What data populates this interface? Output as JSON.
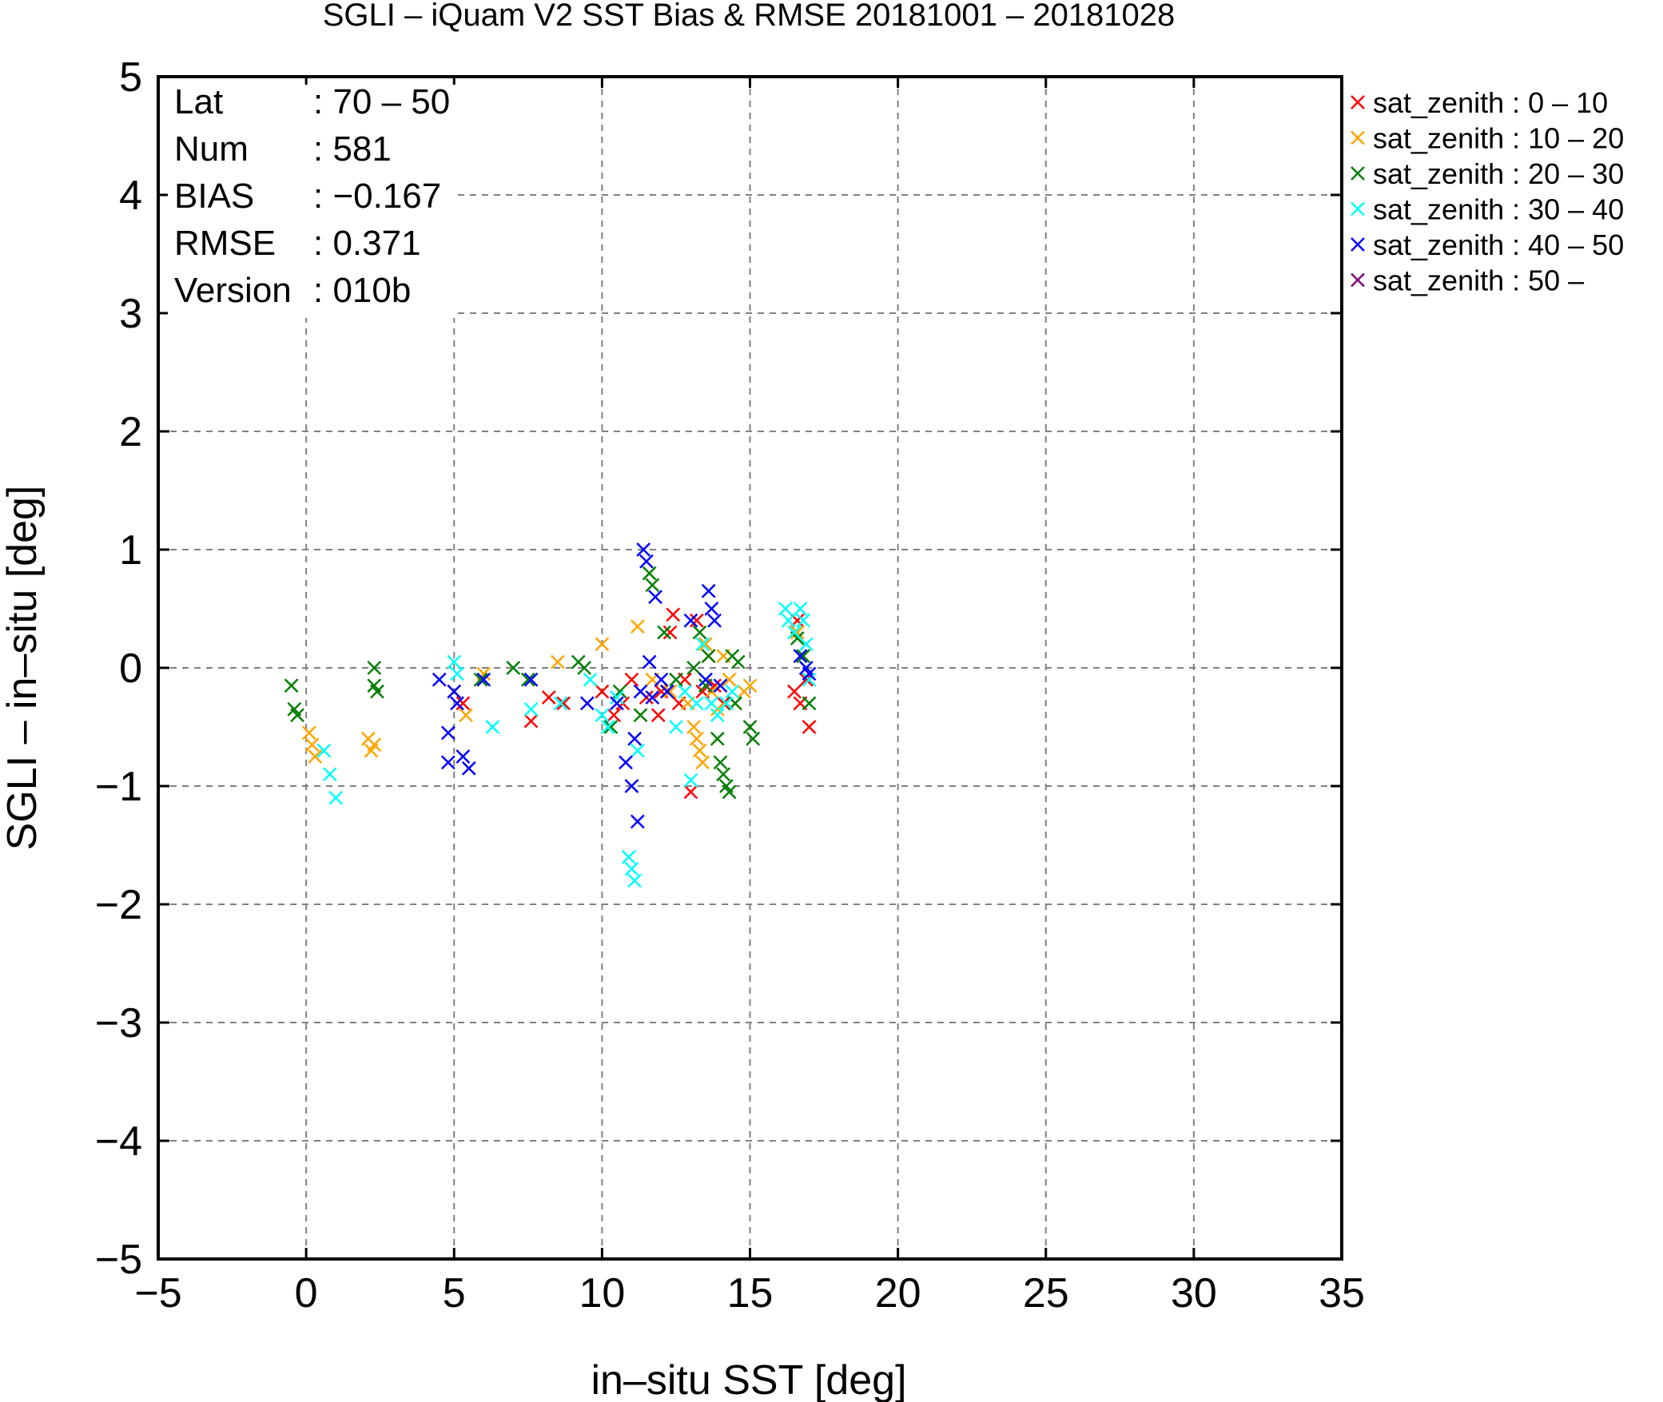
{
  "chart_data": {
    "type": "scatter",
    "title": "SGLI – iQuam V2 SST Bias & RMSE 20181001 – 20181028",
    "xlabel": "in–situ SST [deg]",
    "ylabel": "SGLI – in–situ [deg]",
    "xlim": [
      -5,
      35
    ],
    "ylim": [
      -5,
      5
    ],
    "xticks": [
      -5,
      0,
      5,
      10,
      15,
      20,
      25,
      30,
      35
    ],
    "yticks": [
      -5,
      -4,
      -3,
      -2,
      -1,
      0,
      1,
      2,
      3,
      4,
      5
    ],
    "xtick_labels": [
      "−5",
      "0",
      "5",
      "10",
      "15",
      "20",
      "25",
      "30",
      "35"
    ],
    "ytick_labels": [
      "−5",
      "−4",
      "−3",
      "−2",
      "−1",
      "0",
      "1",
      "2",
      "3",
      "4",
      "5"
    ],
    "grid": true,
    "legend_position": "outside-right-top",
    "stats": [
      {
        "key": "Lat",
        "value": ": 70 – 50"
      },
      {
        "key": "Num",
        "value": ": 581"
      },
      {
        "key": "BIAS",
        "value": ": −0.167"
      },
      {
        "key": "RMSE",
        "value": ": 0.371"
      },
      {
        "key": "Version",
        "value": ": 010b"
      }
    ],
    "series": [
      {
        "name": "sat_zenith :  0 – 10",
        "color": "#ff0000",
        "marker": "x",
        "points": [
          [
            5.3,
            -0.3
          ],
          [
            7.6,
            -0.45
          ],
          [
            8.2,
            -0.25
          ],
          [
            8.7,
            -0.3
          ],
          [
            10.0,
            -0.2
          ],
          [
            10.4,
            -0.4
          ],
          [
            10.7,
            -0.3
          ],
          [
            11.0,
            -0.1
          ],
          [
            11.5,
            -0.25
          ],
          [
            11.9,
            -0.4
          ],
          [
            12.4,
            0.45
          ],
          [
            12.6,
            -0.3
          ],
          [
            12.8,
            -0.1
          ],
          [
            13.0,
            -1.05
          ],
          [
            13.2,
            0.4
          ],
          [
            13.4,
            -0.2
          ],
          [
            13.6,
            0.1
          ],
          [
            13.8,
            -0.15
          ],
          [
            14.1,
            -0.3
          ],
          [
            16.5,
            -0.2
          ],
          [
            16.6,
            0.4
          ],
          [
            16.7,
            -0.3
          ],
          [
            16.9,
            -0.1
          ],
          [
            17.0,
            -0.5
          ],
          [
            12.0,
            -0.2
          ],
          [
            12.3,
            0.3
          ]
        ]
      },
      {
        "name": "sat_zenith : 10 – 20",
        "color": "#ffa500",
        "marker": "x",
        "points": [
          [
            0.1,
            -0.55
          ],
          [
            0.2,
            -0.65
          ],
          [
            0.3,
            -0.75
          ],
          [
            2.1,
            -0.6
          ],
          [
            2.2,
            -0.7
          ],
          [
            2.3,
            -0.65
          ],
          [
            5.0,
            -0.2
          ],
          [
            5.4,
            -0.4
          ],
          [
            6.0,
            -0.05
          ],
          [
            8.5,
            0.05
          ],
          [
            10.0,
            0.2
          ],
          [
            11.2,
            0.35
          ],
          [
            11.7,
            -0.1
          ],
          [
            12.3,
            -0.2
          ],
          [
            12.9,
            -0.3
          ],
          [
            13.1,
            -0.5
          ],
          [
            13.2,
            -0.6
          ],
          [
            13.3,
            -0.7
          ],
          [
            13.4,
            -0.8
          ],
          [
            13.5,
            0.2
          ],
          [
            13.7,
            -0.2
          ],
          [
            13.9,
            -0.35
          ],
          [
            14.1,
            0.1
          ],
          [
            14.3,
            -0.1
          ],
          [
            14.5,
            -0.3
          ],
          [
            14.8,
            -0.2
          ],
          [
            15.0,
            -0.15
          ],
          [
            16.6,
            0.3
          ],
          [
            16.8,
            0.1
          ]
        ]
      },
      {
        "name": "sat_zenith : 20 – 30",
        "color": "#007f00",
        "marker": "x",
        "points": [
          [
            -0.5,
            -0.15
          ],
          [
            -0.4,
            -0.35
          ],
          [
            -0.3,
            -0.4
          ],
          [
            2.3,
            0.0
          ],
          [
            2.3,
            -0.15
          ],
          [
            2.4,
            -0.2
          ],
          [
            5.9,
            -0.1
          ],
          [
            7.0,
            0.0
          ],
          [
            7.5,
            -0.1
          ],
          [
            9.2,
            0.05
          ],
          [
            9.4,
            0.0
          ],
          [
            10.3,
            -0.5
          ],
          [
            10.6,
            -0.2
          ],
          [
            11.3,
            -0.4
          ],
          [
            11.6,
            0.8
          ],
          [
            11.7,
            0.7
          ],
          [
            12.1,
            0.3
          ],
          [
            12.5,
            -0.1
          ],
          [
            13.1,
            0.0
          ],
          [
            13.3,
            0.3
          ],
          [
            13.5,
            -0.15
          ],
          [
            13.6,
            0.1
          ],
          [
            13.9,
            -0.6
          ],
          [
            14.0,
            -0.8
          ],
          [
            14.1,
            -0.9
          ],
          [
            14.2,
            -1.0
          ],
          [
            14.3,
            -1.05
          ],
          [
            14.4,
            0.1
          ],
          [
            14.5,
            -0.3
          ],
          [
            14.6,
            0.05
          ],
          [
            15.0,
            -0.5
          ],
          [
            15.1,
            -0.6
          ],
          [
            16.6,
            0.25
          ],
          [
            16.8,
            0.1
          ],
          [
            17.0,
            -0.3
          ]
        ]
      },
      {
        "name": "sat_zenith : 30 – 40",
        "color": "#00ffff",
        "marker": "x",
        "points": [
          [
            0.6,
            -0.7
          ],
          [
            0.8,
            -0.9
          ],
          [
            1.0,
            -1.1
          ],
          [
            5.0,
            0.05
          ],
          [
            5.1,
            -0.05
          ],
          [
            6.3,
            -0.5
          ],
          [
            7.6,
            -0.35
          ],
          [
            8.6,
            -0.3
          ],
          [
            9.6,
            -0.1
          ],
          [
            10.0,
            -0.4
          ],
          [
            10.2,
            -0.5
          ],
          [
            10.5,
            -0.25
          ],
          [
            10.9,
            -1.6
          ],
          [
            11.0,
            -1.7
          ],
          [
            11.1,
            -1.8
          ],
          [
            11.2,
            -0.7
          ],
          [
            12.5,
            -0.5
          ],
          [
            13.0,
            -0.95
          ],
          [
            13.4,
            0.2
          ],
          [
            13.5,
            -0.1
          ],
          [
            13.7,
            -0.3
          ],
          [
            13.9,
            -0.4
          ],
          [
            14.2,
            -0.3
          ],
          [
            14.4,
            -0.2
          ],
          [
            16.2,
            0.5
          ],
          [
            16.3,
            0.4
          ],
          [
            16.5,
            0.3
          ],
          [
            16.7,
            0.5
          ],
          [
            16.8,
            0.4
          ],
          [
            16.9,
            0.2
          ],
          [
            17.0,
            -0.1
          ],
          [
            13.2,
            -0.3
          ],
          [
            12.8,
            -0.2
          ]
        ]
      },
      {
        "name": "sat_zenith : 40 – 50",
        "color": "#0000ff",
        "marker": "x",
        "points": [
          [
            4.5,
            -0.1
          ],
          [
            4.8,
            -0.55
          ],
          [
            4.8,
            -0.8
          ],
          [
            5.0,
            -0.2
          ],
          [
            5.1,
            -0.3
          ],
          [
            5.3,
            -0.75
          ],
          [
            5.5,
            -0.85
          ],
          [
            6.0,
            -0.1
          ],
          [
            7.6,
            -0.1
          ],
          [
            9.5,
            -0.3
          ],
          [
            10.5,
            -0.3
          ],
          [
            10.8,
            -0.8
          ],
          [
            11.0,
            -1.0
          ],
          [
            11.1,
            -0.6
          ],
          [
            11.2,
            -1.3
          ],
          [
            11.4,
            1.0
          ],
          [
            11.5,
            0.9
          ],
          [
            11.6,
            0.05
          ],
          [
            11.8,
            0.6
          ],
          [
            12.0,
            -0.1
          ],
          [
            12.2,
            -0.2
          ],
          [
            13.0,
            0.4
          ],
          [
            13.6,
            0.65
          ],
          [
            13.7,
            0.5
          ],
          [
            13.8,
            0.4
          ],
          [
            13.5,
            -0.1
          ],
          [
            14.0,
            -0.15
          ],
          [
            16.7,
            0.1
          ],
          [
            16.9,
            0.0
          ],
          [
            17.0,
            -0.05
          ],
          [
            11.3,
            -0.2
          ],
          [
            11.7,
            -0.25
          ]
        ]
      },
      {
        "name": "sat_zenith : 50 –",
        "color": "#7f007f",
        "marker": "x",
        "points": []
      }
    ]
  }
}
